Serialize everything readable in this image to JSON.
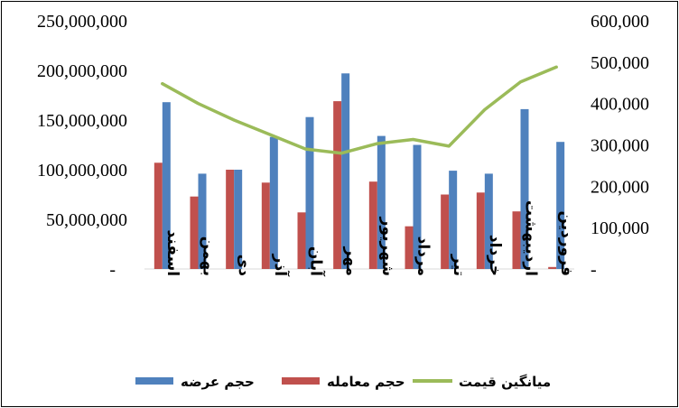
{
  "chart_data": {
    "type": "bar",
    "categories": [
      "اسفند",
      "بهمن",
      "دی",
      "آذر",
      "آبان",
      "مهر",
      "شهریور",
      "مرداد",
      "تیر",
      "خرداد",
      "اردیبهشت",
      "فروردین"
    ],
    "series": [
      {
        "name": "حجم عرضه",
        "type": "bar",
        "axis": "left",
        "color": "#4F81BD",
        "values": [
          168000000,
          96000000,
          100000000,
          133000000,
          153000000,
          197000000,
          134000000,
          125000000,
          99000000,
          96000000,
          161000000,
          128000000
        ]
      },
      {
        "name": "حجم معامله",
        "type": "bar",
        "axis": "left",
        "color": "#C0504D",
        "values": [
          107000000,
          73000000,
          100000000,
          87000000,
          57000000,
          169000000,
          88000000,
          43000000,
          75000000,
          77000000,
          58000000,
          2000000
        ]
      },
      {
        "name": "میانگین قیمت",
        "type": "line",
        "axis": "right",
        "color": "#9BBB59",
        "values": [
          448000,
          400000,
          360000,
          325000,
          290000,
          280000,
          303000,
          313000,
          297000,
          385000,
          452000,
          488000
        ]
      }
    ],
    "y_left": {
      "min": 0,
      "max": 250000000,
      "ticks": [
        0,
        50000000,
        100000000,
        150000000,
        200000000,
        250000000
      ],
      "tick_labels": [
        "-",
        "50,000,000",
        "100,000,000",
        "150,000,000",
        "200,000,000",
        "250,000,000"
      ]
    },
    "y_right": {
      "min": 0,
      "max": 600000,
      "ticks": [
        0,
        100000,
        200000,
        300000,
        400000,
        500000,
        600000
      ],
      "tick_labels": [
        "-",
        "100,000",
        "200,000",
        "300,000",
        "400,000",
        "500,000",
        "600,000"
      ]
    },
    "grid": false,
    "legend_position": "bottom"
  }
}
